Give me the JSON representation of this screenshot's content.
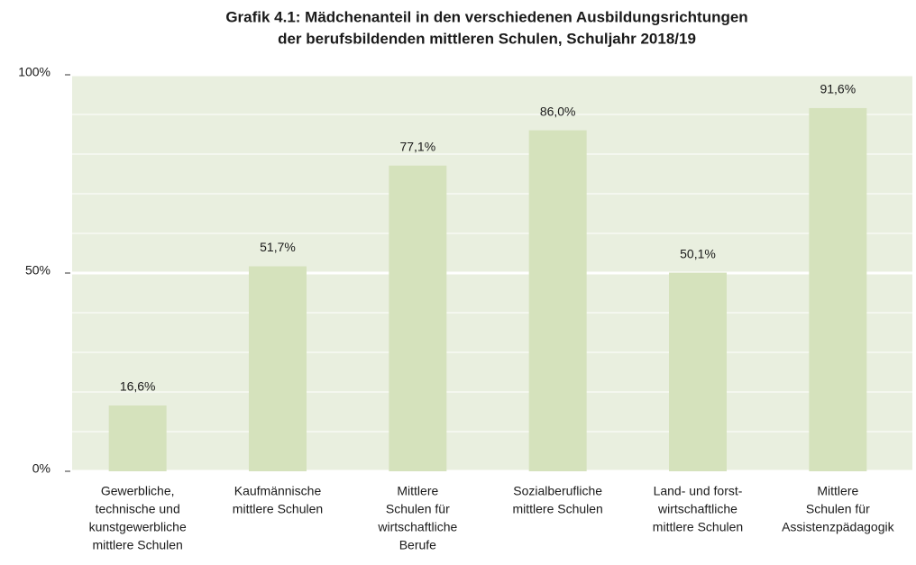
{
  "chart_data": {
    "type": "bar",
    "title": [
      "Grafik 4.1:  Mädchenanteil in den verschiedenen Ausbildungsrichtungen",
      "der berufsbildenden mittleren Schulen, Schuljahr 2018/19"
    ],
    "categories": [
      [
        "Gewerbliche,",
        "technische und",
        "kunstgewerbliche",
        "mittlere Schulen"
      ],
      [
        "Kaufmännische",
        "mittlere Schulen"
      ],
      [
        "Mittlere",
        "Schulen für",
        "wirtschaftliche",
        "Berufe"
      ],
      [
        "Sozialberufliche",
        "mittlere Schulen"
      ],
      [
        "Land- und forst-",
        "wirtschaftliche",
        "mittlere Schulen"
      ],
      [
        "Mittlere",
        "Schulen für",
        "Assistenzpädagogik"
      ]
    ],
    "values": [
      16.6,
      51.7,
      77.1,
      86.0,
      50.1,
      91.6
    ],
    "value_labels": [
      "16,6%",
      "51,7%",
      "77,1%",
      "86,0%",
      "50,1%",
      "91,6%"
    ],
    "color": "#d5e2bc",
    "ylim": [
      0,
      100
    ],
    "yticks": [
      {
        "value": 0,
        "label": "0%"
      },
      {
        "value": 50,
        "label": "50%"
      },
      {
        "value": 100,
        "label": "100%"
      }
    ],
    "minor_yticks": [
      10,
      20,
      30,
      40,
      60,
      70,
      80,
      90
    ],
    "grid": true
  }
}
